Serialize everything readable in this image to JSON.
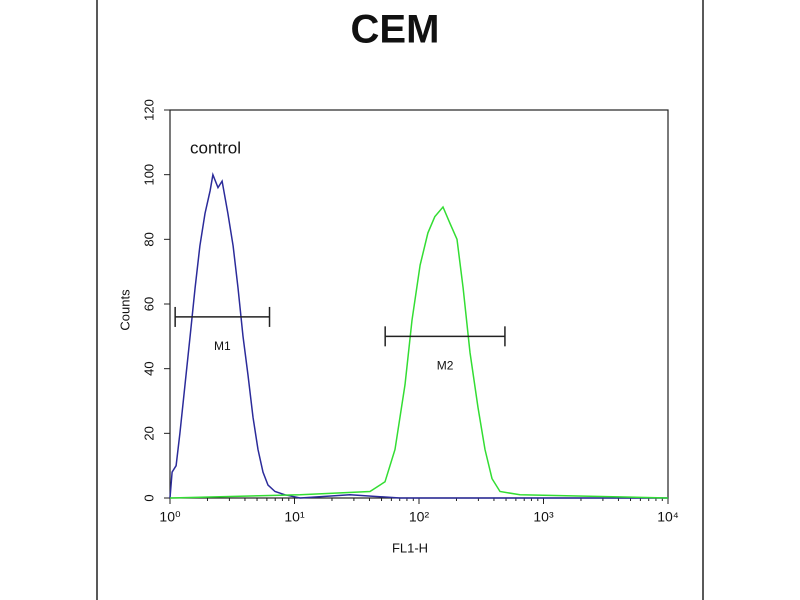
{
  "chart_data": {
    "type": "line",
    "title": "CEM",
    "x_label": "FL1-H",
    "y_label": "Counts",
    "annotation": "control",
    "xscale": "log",
    "xlim": [
      1,
      10000
    ],
    "ylim": [
      0,
      120
    ],
    "xticks": [
      {
        "value": 1,
        "label": "10⁰"
      },
      {
        "value": 10,
        "label": "10¹"
      },
      {
        "value": 100,
        "label": "10²"
      },
      {
        "value": 1000,
        "label": "10³"
      },
      {
        "value": 10000,
        "label": "10⁴"
      }
    ],
    "yticks": [
      0,
      20,
      40,
      60,
      80,
      100,
      120
    ],
    "series": [
      {
        "color": "#2b2b9a",
        "x": [
          1,
          1.04,
          1.12,
          1.2,
          1.32,
          1.45,
          1.59,
          1.74,
          1.91,
          2.1,
          2.21,
          2.43,
          2.62,
          2.92,
          3.21,
          3.52,
          3.86,
          4.23,
          4.64,
          5.09,
          5.58,
          6.13,
          6.97,
          8.39,
          11.1,
          27.9,
          70.4,
          447,
          10000
        ],
        "values": [
          0,
          8,
          10,
          20,
          35,
          50,
          65,
          78,
          88,
          95,
          100,
          96,
          98,
          88,
          78,
          65,
          50,
          38,
          25,
          15,
          8,
          4,
          2,
          1,
          0,
          1,
          0,
          0,
          0
        ]
      },
      {
        "color": "#33dd33",
        "x": [
          1,
          11.1,
          40.4,
          53.3,
          64.2,
          77.2,
          87.9,
          102,
          118,
          134,
          156,
          177,
          202,
          226,
          257,
          298,
          339,
          386,
          447,
          647,
          10000
        ],
        "values": [
          0,
          1,
          2,
          5,
          15,
          35,
          55,
          72,
          82,
          87,
          90,
          85,
          80,
          65,
          45,
          28,
          15,
          6,
          2,
          1,
          0
        ]
      }
    ],
    "markers": [
      {
        "label": "M1",
        "x": [
          1.1,
          6.3
        ],
        "y": 56
      },
      {
        "label": "M2",
        "x": [
          53.5,
          490
        ],
        "y": 50
      }
    ]
  }
}
